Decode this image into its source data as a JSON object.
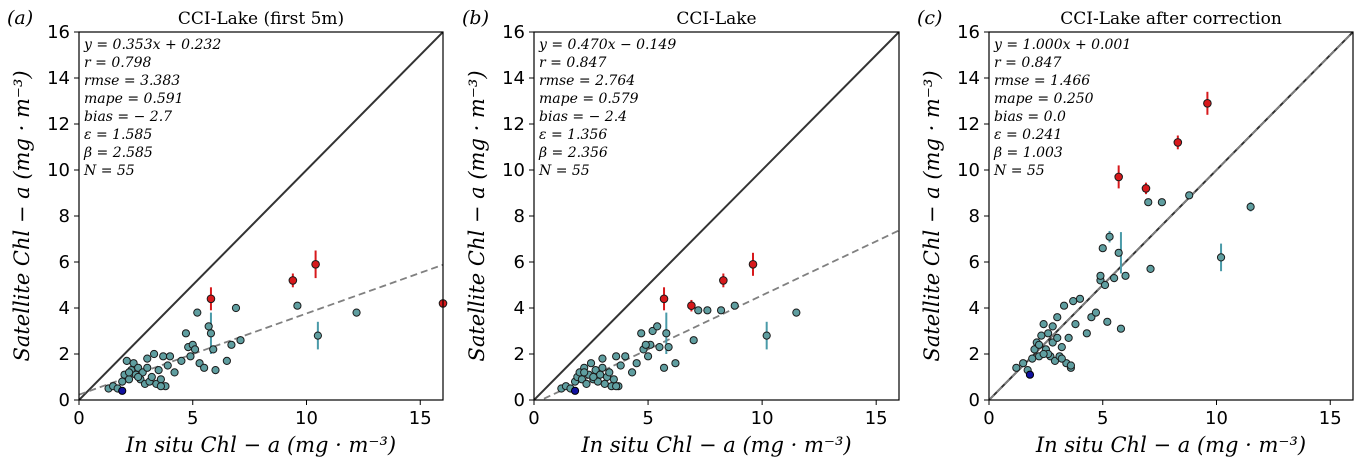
{
  "chart_data": [
    {
      "type": "scatter",
      "panel_label": "(a)",
      "title": "CCI-Lake (first 5m)",
      "xlabel": "In situ Chl − a (mg · m⁻³)",
      "ylabel": "Satellite Chl − a (mg · m⁻³)",
      "xlim": [
        0,
        16
      ],
      "ylim": [
        0,
        16
      ],
      "xticks": [
        "0",
        "5",
        "10",
        "15"
      ],
      "yticks": [
        "0",
        "2",
        "4",
        "6",
        "8",
        "10",
        "12",
        "14",
        "16"
      ],
      "stats": [
        "y = 0.353x + 0.232",
        "r = 0.798",
        "rmse = 3.383",
        "mape = 0.591",
        "bias = − 2.7",
        "ε = 1.585",
        "β = 2.585",
        "N = 55"
      ],
      "fit": {
        "slope": 0.353,
        "intercept": 0.232
      },
      "points_teal": [
        [
          1.3,
          0.5
        ],
        [
          1.5,
          0.6
        ],
        [
          1.7,
          0.5
        ],
        [
          1.9,
          0.8
        ],
        [
          2.0,
          1.1
        ],
        [
          2.1,
          1.7
        ],
        [
          2.2,
          0.9
        ],
        [
          2.3,
          1.3
        ],
        [
          2.4,
          1.6
        ],
        [
          2.5,
          1.1
        ],
        [
          2.6,
          1.4
        ],
        [
          2.7,
          0.9
        ],
        [
          2.8,
          1.2
        ],
        [
          2.9,
          0.7
        ],
        [
          3.0,
          1.8
        ],
        [
          3.1,
          0.8
        ],
        [
          3.2,
          1.0
        ],
        [
          3.3,
          2.0
        ],
        [
          3.4,
          0.7
        ],
        [
          3.5,
          1.3
        ],
        [
          3.6,
          0.9
        ],
        [
          3.7,
          1.9
        ],
        [
          3.8,
          0.6
        ],
        [
          3.9,
          1.5
        ],
        [
          4.0,
          1.9
        ],
        [
          4.2,
          1.2
        ],
        [
          4.5,
          1.7
        ],
        [
          4.7,
          2.9
        ],
        [
          4.8,
          2.3
        ],
        [
          4.9,
          1.9
        ],
        [
          5.0,
          2.4
        ],
        [
          5.1,
          2.2
        ],
        [
          5.2,
          3.8
        ],
        [
          5.3,
          1.6
        ],
        [
          5.5,
          1.4
        ],
        [
          5.7,
          3.2
        ],
        [
          5.8,
          2.9
        ],
        [
          5.9,
          2.2
        ],
        [
          6.0,
          1.3
        ],
        [
          6.5,
          1.7
        ],
        [
          6.7,
          2.4
        ],
        [
          6.9,
          4.0
        ],
        [
          7.1,
          2.6
        ],
        [
          9.6,
          4.1
        ],
        [
          10.5,
          2.8
        ],
        [
          12.2,
          3.8
        ],
        [
          2.2,
          1.2
        ],
        [
          2.6,
          1.0
        ],
        [
          3.6,
          0.6
        ],
        [
          3.0,
          1.4
        ]
      ],
      "points_red": [
        [
          5.8,
          4.4
        ],
        [
          9.4,
          5.2
        ],
        [
          10.4,
          5.9
        ],
        [
          16.0,
          4.2
        ]
      ],
      "points_blue": [
        [
          1.9,
          0.4
        ]
      ],
      "errorbars": [
        {
          "x": 5.8,
          "y": 2.9,
          "err": 0.9,
          "color": "teal"
        },
        {
          "x": 10.5,
          "y": 2.8,
          "err": 0.6,
          "color": "teal"
        },
        {
          "x": 5.8,
          "y": 4.4,
          "err": 0.5,
          "color": "red"
        },
        {
          "x": 9.4,
          "y": 5.2,
          "err": 0.3,
          "color": "red"
        },
        {
          "x": 10.4,
          "y": 5.9,
          "err": 0.6,
          "color": "red"
        }
      ]
    },
    {
      "type": "scatter",
      "panel_label": "(b)",
      "title": "CCI-Lake",
      "xlabel": "In situ Chl − a (mg · m⁻³)",
      "ylabel": "Satellite Chl − a (mg · m⁻³)",
      "xlim": [
        0,
        16
      ],
      "ylim": [
        0,
        16
      ],
      "xticks": [
        "0",
        "5",
        "10",
        "15"
      ],
      "yticks": [
        "0",
        "2",
        "4",
        "6",
        "8",
        "10",
        "12",
        "14",
        "16"
      ],
      "stats": [
        "y = 0.470x − 0.149",
        "r = 0.847",
        "rmse = 2.764",
        "mape = 0.579",
        "bias = − 2.4",
        "ε = 1.356",
        "β = 2.356",
        "N = 55"
      ],
      "fit": {
        "slope": 0.47,
        "intercept": -0.149
      },
      "points_teal": [
        [
          1.2,
          0.5
        ],
        [
          1.4,
          0.6
        ],
        [
          1.6,
          0.5
        ],
        [
          1.8,
          0.8
        ],
        [
          1.9,
          1.0
        ],
        [
          2.0,
          1.2
        ],
        [
          2.1,
          0.9
        ],
        [
          2.2,
          1.4
        ],
        [
          2.3,
          0.7
        ],
        [
          2.4,
          1.1
        ],
        [
          2.5,
          1.6
        ],
        [
          2.6,
          0.9
        ],
        [
          2.7,
          1.3
        ],
        [
          2.8,
          0.8
        ],
        [
          2.9,
          1.1
        ],
        [
          3.0,
          1.8
        ],
        [
          3.1,
          0.7
        ],
        [
          3.2,
          1.0
        ],
        [
          3.3,
          1.2
        ],
        [
          3.4,
          0.6
        ],
        [
          3.5,
          0.9
        ],
        [
          3.6,
          1.9
        ],
        [
          3.7,
          0.6
        ],
        [
          3.8,
          1.5
        ],
        [
          4.0,
          1.9
        ],
        [
          4.3,
          1.2
        ],
        [
          4.5,
          1.6
        ],
        [
          4.7,
          2.9
        ],
        [
          4.8,
          2.2
        ],
        [
          5.0,
          1.9
        ],
        [
          5.1,
          2.4
        ],
        [
          5.2,
          3.0
        ],
        [
          5.4,
          3.2
        ],
        [
          5.5,
          2.3
        ],
        [
          5.7,
          1.4
        ],
        [
          5.8,
          2.9
        ],
        [
          5.9,
          2.3
        ],
        [
          6.2,
          1.6
        ],
        [
          7.0,
          2.6
        ],
        [
          7.2,
          3.9
        ],
        [
          7.6,
          3.9
        ],
        [
          8.2,
          3.9
        ],
        [
          8.8,
          4.1
        ],
        [
          10.2,
          2.8
        ],
        [
          11.5,
          3.8
        ],
        [
          2.2,
          1.2
        ],
        [
          2.6,
          1.0
        ],
        [
          3.6,
          0.6
        ],
        [
          3.0,
          1.4
        ],
        [
          4.9,
          2.4
        ]
      ],
      "points_red": [
        [
          5.7,
          4.4
        ],
        [
          6.9,
          4.1
        ],
        [
          8.3,
          5.2
        ],
        [
          9.6,
          5.9
        ]
      ],
      "points_blue": [
        [
          1.8,
          0.4
        ]
      ],
      "errorbars": [
        {
          "x": 5.8,
          "y": 2.9,
          "err": 0.9,
          "color": "teal"
        },
        {
          "x": 10.2,
          "y": 2.8,
          "err": 0.6,
          "color": "teal"
        },
        {
          "x": 5.7,
          "y": 4.4,
          "err": 0.5,
          "color": "red"
        },
        {
          "x": 6.9,
          "y": 4.1,
          "err": 0.25,
          "color": "red"
        },
        {
          "x": 8.3,
          "y": 5.2,
          "err": 0.3,
          "color": "red"
        },
        {
          "x": 9.6,
          "y": 5.9,
          "err": 0.5,
          "color": "red"
        }
      ]
    },
    {
      "type": "scatter",
      "panel_label": "(c)",
      "title": "CCI-Lake after correction",
      "xlabel": "In situ Chl − a (mg · m⁻³)",
      "ylabel": "Satellite Chl − a (mg · m⁻³)",
      "xlim": [
        0,
        16
      ],
      "ylim": [
        0,
        16
      ],
      "xticks": [
        "0",
        "5",
        "10",
        "15"
      ],
      "yticks": [
        "0",
        "2",
        "4",
        "6",
        "8",
        "10",
        "12",
        "14",
        "16"
      ],
      "stats": [
        "y = 1.000x + 0.001",
        "r = 0.847",
        "rmse = 1.466",
        "mape = 0.250",
        "bias = 0.0",
        "ε = 0.241",
        "β = 1.003",
        "N = 55"
      ],
      "fit": {
        "slope": 1.0,
        "intercept": 0.001
      },
      "points_teal": [
        [
          1.2,
          1.4
        ],
        [
          1.5,
          1.6
        ],
        [
          1.7,
          1.3
        ],
        [
          1.9,
          1.8
        ],
        [
          2.0,
          2.2
        ],
        [
          2.1,
          2.5
        ],
        [
          2.2,
          1.9
        ],
        [
          2.3,
          2.8
        ],
        [
          2.4,
          3.3
        ],
        [
          2.5,
          2.2
        ],
        [
          2.6,
          2.9
        ],
        [
          2.7,
          1.9
        ],
        [
          2.8,
          2.5
        ],
        [
          2.9,
          1.7
        ],
        [
          3.0,
          3.6
        ],
        [
          3.1,
          1.9
        ],
        [
          3.2,
          2.3
        ],
        [
          3.3,
          4.1
        ],
        [
          3.4,
          1.6
        ],
        [
          3.5,
          2.7
        ],
        [
          3.6,
          1.4
        ],
        [
          3.7,
          4.3
        ],
        [
          3.8,
          3.3
        ],
        [
          4.0,
          4.4
        ],
        [
          4.3,
          2.9
        ],
        [
          4.5,
          3.6
        ],
        [
          4.7,
          3.8
        ],
        [
          4.9,
          5.2
        ],
        [
          5.0,
          6.6
        ],
        [
          5.1,
          5.0
        ],
        [
          5.2,
          3.4
        ],
        [
          5.3,
          7.1
        ],
        [
          5.5,
          5.3
        ],
        [
          5.7,
          6.4
        ],
        [
          5.8,
          3.1
        ],
        [
          6.0,
          5.4
        ],
        [
          7.0,
          8.6
        ],
        [
          7.1,
          5.7
        ],
        [
          7.6,
          8.6
        ],
        [
          8.8,
          8.9
        ],
        [
          10.2,
          6.2
        ],
        [
          11.5,
          8.4
        ],
        [
          2.2,
          2.4
        ],
        [
          2.6,
          2.0
        ],
        [
          3.6,
          1.5
        ],
        [
          3.0,
          2.7
        ],
        [
          4.9,
          5.4
        ],
        [
          2.4,
          2.0
        ],
        [
          3.2,
          1.8
        ],
        [
          2.8,
          3.2
        ]
      ],
      "points_red": [
        [
          5.7,
          9.7
        ],
        [
          6.9,
          9.2
        ],
        [
          8.3,
          11.2
        ],
        [
          9.6,
          12.9
        ]
      ],
      "points_blue": [
        [
          1.8,
          1.1
        ]
      ],
      "errorbars": [
        {
          "x": 5.8,
          "y": 6.4,
          "err": 0.9,
          "color": "teal"
        },
        {
          "x": 10.2,
          "y": 6.2,
          "err": 0.6,
          "color": "teal"
        },
        {
          "x": 5.3,
          "y": 7.1,
          "err": 0.25,
          "color": "teal"
        },
        {
          "x": 11.5,
          "y": 8.4,
          "err": 0.2,
          "color": "teal"
        },
        {
          "x": 5.7,
          "y": 9.7,
          "err": 0.5,
          "color": "red"
        },
        {
          "x": 6.9,
          "y": 9.2,
          "err": 0.25,
          "color": "red"
        },
        {
          "x": 8.3,
          "y": 11.2,
          "err": 0.3,
          "color": "red"
        },
        {
          "x": 9.6,
          "y": 12.9,
          "err": 0.5,
          "color": "red"
        }
      ]
    }
  ],
  "colors": {
    "teal": "#5f9ea0",
    "red": "#d7191c",
    "blue": "#1010a0",
    "errbar_teal": "#4a9aa8",
    "errbar_red": "#d7191c",
    "line": "#333333",
    "fit": "#808080"
  }
}
